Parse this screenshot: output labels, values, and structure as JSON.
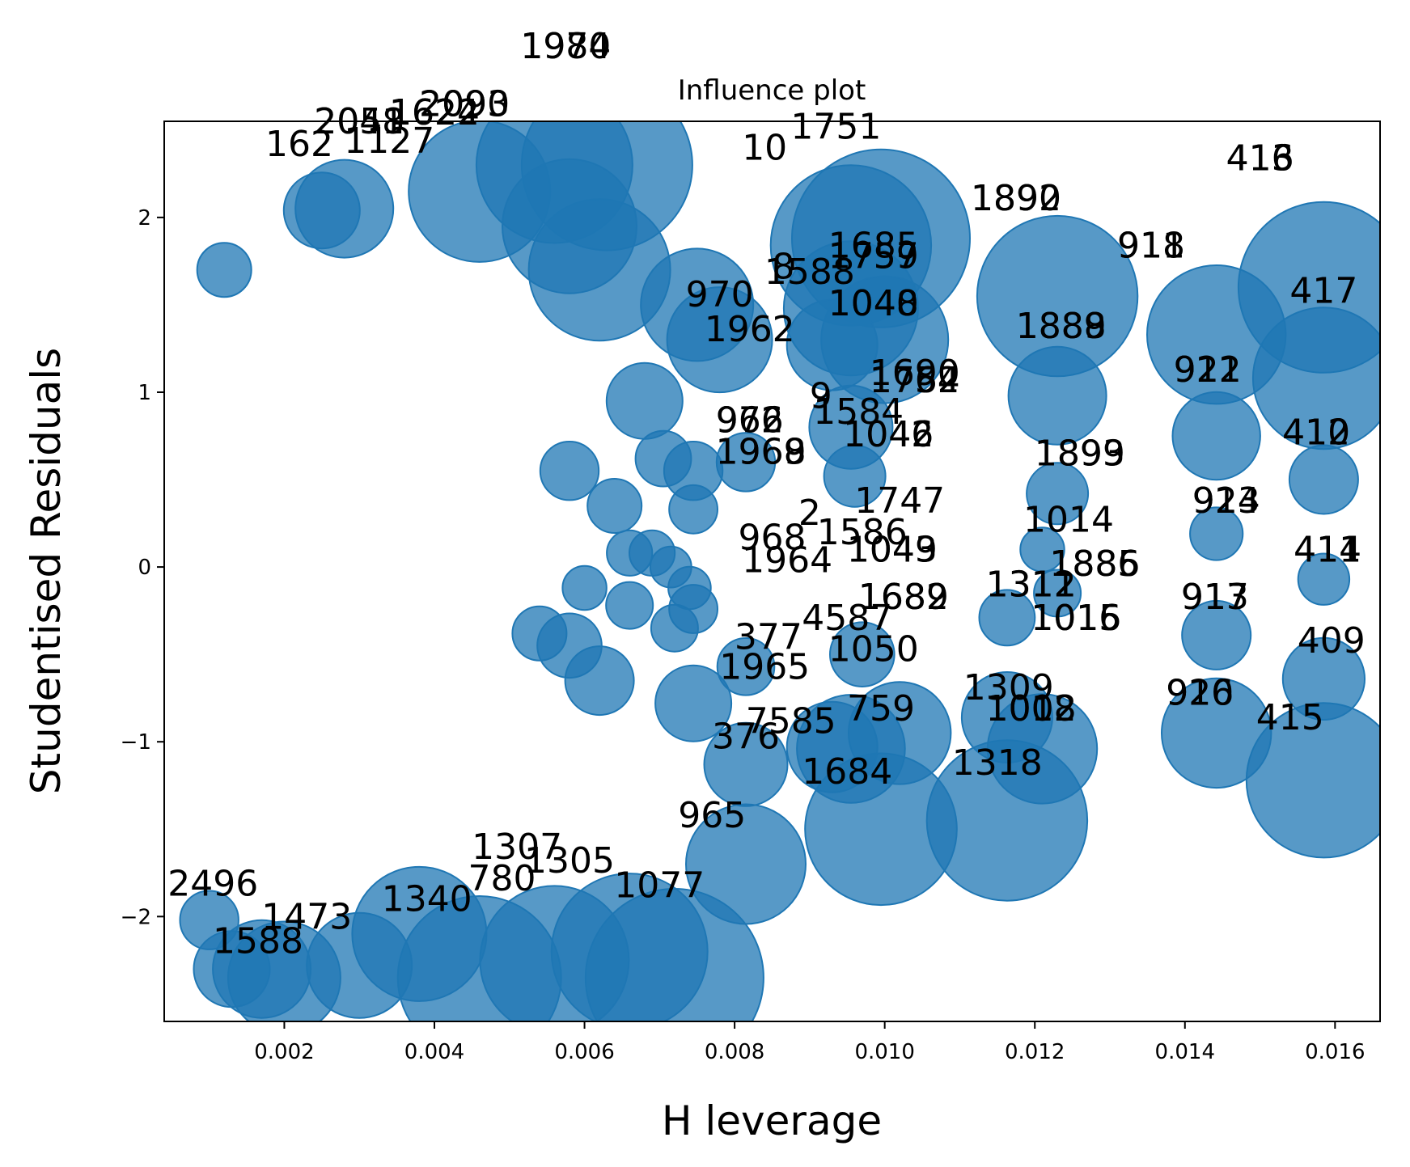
{
  "chart_data": {
    "type": "scatter",
    "title": "Influence plot",
    "xlabel": "H leverage",
    "ylabel": "Studentised Residuals",
    "xlim": [
      0.0004,
      0.0166
    ],
    "ylim": [
      -2.6,
      2.55
    ],
    "xticks": [
      0.002,
      0.004,
      0.006,
      0.008,
      0.01,
      0.012,
      0.014,
      0.016
    ],
    "xtick_labels": [
      "0.002",
      "0.004",
      "0.006",
      "0.008",
      "0.010",
      "0.012",
      "0.014",
      "0.016"
    ],
    "yticks": [
      -2,
      -1,
      0,
      1,
      2
    ],
    "ytick_labels": [
      "−2",
      "−1",
      "0",
      "1",
      "2"
    ],
    "grid": false,
    "marker_color": "#1f77b4",
    "note": "bubble size proportional to Cook's distance",
    "points": [
      {
        "h": 0.01585,
        "r": 1.6,
        "size": 0.95
      },
      {
        "h": 0.01585,
        "r": 1.08,
        "size": 0.75
      },
      {
        "h": 0.01585,
        "r": 0.5,
        "size": 0.25
      },
      {
        "h": 0.01585,
        "r": -0.07,
        "size": 0.13
      },
      {
        "h": 0.01585,
        "r": -0.64,
        "size": 0.34
      },
      {
        "h": 0.01585,
        "r": -1.22,
        "size": 0.84
      },
      {
        "h": 0.01442,
        "r": 1.33,
        "size": 0.73
      },
      {
        "h": 0.01442,
        "r": 0.75,
        "size": 0.38
      },
      {
        "h": 0.01442,
        "r": 0.19,
        "size": 0.14
      },
      {
        "h": 0.01442,
        "r": -0.39,
        "size": 0.25
      },
      {
        "h": 0.01442,
        "r": -0.95,
        "size": 0.53
      },
      {
        "h": 0.0123,
        "r": 1.55,
        "size": 0.88
      },
      {
        "h": 0.0123,
        "r": 0.98,
        "size": 0.45
      },
      {
        "h": 0.0123,
        "r": 0.42,
        "size": 0.2
      },
      {
        "h": 0.0121,
        "r": 0.1,
        "size": 0.08
      },
      {
        "h": 0.0123,
        "r": -0.15,
        "size": 0.1
      },
      {
        "h": 0.0121,
        "r": -1.04,
        "size": 0.53
      },
      {
        "h": 0.01163,
        "r": -1.45,
        "size": 0.88
      },
      {
        "h": 0.01163,
        "r": -0.86,
        "size": 0.4
      },
      {
        "h": 0.01163,
        "r": -0.29,
        "size": 0.16
      },
      {
        "h": 0.00995,
        "r": 1.88,
        "size": 1.0
      },
      {
        "h": 0.00955,
        "r": 1.84,
        "size": 0.88
      },
      {
        "h": 0.00955,
        "r": 1.48,
        "size": 0.7
      },
      {
        "h": 0.01,
        "r": 1.3,
        "size": 0.65
      },
      {
        "h": 0.0093,
        "r": 1.27,
        "size": 0.4
      },
      {
        "h": 0.00995,
        "r": -1.5,
        "size": 0.82
      },
      {
        "h": 0.00955,
        "r": -1.04,
        "size": 0.52
      },
      {
        "h": 0.0102,
        "r": -0.95,
        "size": 0.48
      },
      {
        "h": 0.0093,
        "r": -1.03,
        "size": 0.4
      },
      {
        "h": 0.00955,
        "r": 0.8,
        "size": 0.35
      },
      {
        "h": 0.0096,
        "r": 0.52,
        "size": 0.2
      },
      {
        "h": 0.0097,
        "r": -0.5,
        "size": 0.22
      },
      {
        "h": 0.00815,
        "r": -1.7,
        "size": 0.6
      },
      {
        "h": 0.00815,
        "r": -1.13,
        "size": 0.35
      },
      {
        "h": 0.00815,
        "r": -0.57,
        "size": 0.17
      },
      {
        "h": 0.00815,
        "r": 0.6,
        "size": 0.18
      },
      {
        "h": 0.0078,
        "r": 1.3,
        "size": 0.5
      },
      {
        "h": 0.0075,
        "r": 1.5,
        "size": 0.55
      },
      {
        "h": 0.00745,
        "r": 0.55,
        "size": 0.18
      },
      {
        "h": 0.00745,
        "r": 0.33,
        "size": 0.11
      },
      {
        "h": 0.00745,
        "r": -0.24,
        "size": 0.11
      },
      {
        "h": 0.0072,
        "r": -0.35,
        "size": 0.1
      },
      {
        "h": 0.00745,
        "r": -0.78,
        "size": 0.3
      },
      {
        "h": 0.0063,
        "r": 2.3,
        "size": 0.95
      },
      {
        "h": 0.0056,
        "r": 2.3,
        "size": 0.85
      },
      {
        "h": 0.0058,
        "r": 1.95,
        "size": 0.7
      },
      {
        "h": 0.0062,
        "r": 1.7,
        "size": 0.75
      },
      {
        "h": 0.0028,
        "r": 2.05,
        "size": 0.45
      },
      {
        "h": 0.0025,
        "r": 2.04,
        "size": 0.3
      },
      {
        "h": 0.0046,
        "r": 2.15,
        "size": 0.75
      },
      {
        "h": 0.0072,
        "r": -2.35,
        "size": 1.0
      },
      {
        "h": 0.0066,
        "r": -2.2,
        "size": 0.85
      },
      {
        "h": 0.0056,
        "r": -2.25,
        "size": 0.8
      },
      {
        "h": 0.0046,
        "r": -2.35,
        "size": 0.9
      },
      {
        "h": 0.0038,
        "r": -2.1,
        "size": 0.7
      },
      {
        "h": 0.003,
        "r": -2.28,
        "size": 0.5
      },
      {
        "h": 0.002,
        "r": -2.35,
        "size": 0.55
      },
      {
        "h": 0.0017,
        "r": -2.3,
        "size": 0.45
      },
      {
        "h": 0.0013,
        "r": -2.3,
        "size": 0.3
      },
      {
        "h": 0.001,
        "r": -2.02,
        "size": 0.18
      },
      {
        "h": 0.0012,
        "r": 1.7,
        "size": 0.15
      },
      {
        "h": 0.0058,
        "r": 0.55,
        "size": 0.18
      },
      {
        "h": 0.0064,
        "r": 0.35,
        "size": 0.15
      },
      {
        "h": 0.0066,
        "r": 0.08,
        "size": 0.09
      },
      {
        "h": 0.0069,
        "r": 0.08,
        "size": 0.09
      },
      {
        "h": 0.0066,
        "r": -0.22,
        "size": 0.1
      },
      {
        "h": 0.006,
        "r": -0.12,
        "size": 0.08
      },
      {
        "h": 0.0058,
        "r": -0.45,
        "size": 0.22
      },
      {
        "h": 0.0062,
        "r": -0.65,
        "size": 0.25
      },
      {
        "h": 0.0074,
        "r": -0.12,
        "size": 0.07
      },
      {
        "h": 0.00715,
        "r": 0.0,
        "size": 0.06
      },
      {
        "h": 0.00705,
        "r": 0.62,
        "size": 0.16
      },
      {
        "h": 0.0068,
        "r": 0.95,
        "size": 0.3
      },
      {
        "h": 0.0054,
        "r": -0.38,
        "size": 0.15
      }
    ],
    "annotations": [
      {
        "text": "1980",
        "h": 0.00575,
        "r": 2.98
      },
      {
        "text": "1974",
        "h": 0.00575,
        "r": 2.98
      },
      {
        "text": "2090",
        "h": 0.0044,
        "r": 2.65
      },
      {
        "text": "2093",
        "h": 0.0044,
        "r": 2.65
      },
      {
        "text": "1624",
        "h": 0.004,
        "r": 2.6
      },
      {
        "text": "1622",
        "h": 0.004,
        "r": 2.6
      },
      {
        "text": "2051",
        "h": 0.003,
        "r": 2.55
      },
      {
        "text": "2048",
        "h": 0.003,
        "r": 2.55
      },
      {
        "text": "162",
        "h": 0.0022,
        "r": 2.42
      },
      {
        "text": "1127",
        "h": 0.0034,
        "r": 2.44
      },
      {
        "text": "1751",
        "h": 0.00935,
        "r": 2.52
      },
      {
        "text": "10",
        "h": 0.0084,
        "r": 2.4
      },
      {
        "text": "416",
        "h": 0.015,
        "r": 2.34
      },
      {
        "text": "413",
        "h": 0.015,
        "r": 2.34
      },
      {
        "text": "1890",
        "h": 0.01175,
        "r": 2.11
      },
      {
        "text": "1892",
        "h": 0.01175,
        "r": 2.11
      },
      {
        "text": "918",
        "h": 0.01355,
        "r": 1.84
      },
      {
        "text": "911",
        "h": 0.01355,
        "r": 1.84
      },
      {
        "text": "417",
        "h": 0.01585,
        "r": 1.58
      },
      {
        "text": "1685",
        "h": 0.00985,
        "r": 1.84
      },
      {
        "text": "1757",
        "h": 0.00985,
        "r": 1.78
      },
      {
        "text": "1759",
        "h": 0.00985,
        "r": 1.78
      },
      {
        "text": "1588",
        "h": 0.009,
        "r": 1.69
      },
      {
        "text": "8",
        "h": 0.00865,
        "r": 1.72
      },
      {
        "text": "970",
        "h": 0.0078,
        "r": 1.56
      },
      {
        "text": "1040",
        "h": 0.00985,
        "r": 1.51
      },
      {
        "text": "1048",
        "h": 0.00985,
        "r": 1.51
      },
      {
        "text": "1962",
        "h": 0.0082,
        "r": 1.36
      },
      {
        "text": "1888",
        "h": 0.01235,
        "r": 1.38
      },
      {
        "text": "1889",
        "h": 0.01235,
        "r": 1.38
      },
      {
        "text": "921",
        "h": 0.0143,
        "r": 1.13
      },
      {
        "text": "912",
        "h": 0.0143,
        "r": 1.13
      },
      {
        "text": "1690",
        "h": 0.0104,
        "r": 1.11
      },
      {
        "text": "1754",
        "h": 0.0104,
        "r": 1.07
      },
      {
        "text": "1762",
        "h": 0.0104,
        "r": 1.07
      },
      {
        "text": "9",
        "h": 0.00915,
        "r": 0.98
      },
      {
        "text": "1584",
        "h": 0.00965,
        "r": 0.89
      },
      {
        "text": "976",
        "h": 0.0082,
        "r": 0.84
      },
      {
        "text": "962",
        "h": 0.0082,
        "r": 0.84
      },
      {
        "text": "1042",
        "h": 0.01005,
        "r": 0.76
      },
      {
        "text": "1046",
        "h": 0.01005,
        "r": 0.76
      },
      {
        "text": "410",
        "h": 0.01575,
        "r": 0.77
      },
      {
        "text": "412",
        "h": 0.01575,
        "r": 0.77
      },
      {
        "text": "1969",
        "h": 0.00835,
        "r": 0.66
      },
      {
        "text": "1968",
        "h": 0.00835,
        "r": 0.66
      },
      {
        "text": "1899",
        "h": 0.0126,
        "r": 0.65
      },
      {
        "text": "1893",
        "h": 0.0126,
        "r": 0.65
      },
      {
        "text": "914",
        "h": 0.01455,
        "r": 0.38
      },
      {
        "text": "923",
        "h": 0.01455,
        "r": 0.38
      },
      {
        "text": "1747",
        "h": 0.0102,
        "r": 0.38
      },
      {
        "text": "1014",
        "h": 0.01245,
        "r": 0.27
      },
      {
        "text": "1586",
        "h": 0.0097,
        "r": 0.2
      },
      {
        "text": "2",
        "h": 0.009,
        "r": 0.31
      },
      {
        "text": "968",
        "h": 0.0085,
        "r": 0.17
      },
      {
        "text": "1964",
        "h": 0.0087,
        "r": 0.04
      },
      {
        "text": "1049",
        "h": 0.0101,
        "r": 0.1
      },
      {
        "text": "1043",
        "h": 0.0101,
        "r": 0.1
      },
      {
        "text": "414",
        "h": 0.0159,
        "r": 0.1
      },
      {
        "text": "411",
        "h": 0.0159,
        "r": 0.1
      },
      {
        "text": "1886",
        "h": 0.0128,
        "r": 0.02
      },
      {
        "text": "1885",
        "h": 0.0128,
        "r": 0.02
      },
      {
        "text": "1311",
        "h": 0.01195,
        "r": -0.1
      },
      {
        "text": "1312",
        "h": 0.01195,
        "r": -0.1
      },
      {
        "text": "917",
        "h": 0.0144,
        "r": -0.17
      },
      {
        "text": "913",
        "h": 0.0144,
        "r": -0.17
      },
      {
        "text": "1689",
        "h": 0.01025,
        "r": -0.17
      },
      {
        "text": "1682",
        "h": 0.01025,
        "r": -0.17
      },
      {
        "text": "1016",
        "h": 0.01255,
        "r": -0.29
      },
      {
        "text": "1015",
        "h": 0.01255,
        "r": -0.29
      },
      {
        "text": "4587",
        "h": 0.0095,
        "r": -0.29
      },
      {
        "text": "409",
        "h": 0.01595,
        "r": -0.42
      },
      {
        "text": "377",
        "h": 0.00845,
        "r": -0.4
      },
      {
        "text": "1050",
        "h": 0.00985,
        "r": -0.47
      },
      {
        "text": "1965",
        "h": 0.0084,
        "r": -0.57
      },
      {
        "text": "1309",
        "h": 0.01165,
        "r": -0.69
      },
      {
        "text": "920",
        "h": 0.0142,
        "r": -0.72
      },
      {
        "text": "916",
        "h": 0.0142,
        "r": -0.72
      },
      {
        "text": "1008",
        "h": 0.01195,
        "r": -0.81
      },
      {
        "text": "1012",
        "h": 0.01195,
        "r": -0.81
      },
      {
        "text": "759",
        "h": 0.00995,
        "r": -0.81
      },
      {
        "text": "7585",
        "h": 0.00875,
        "r": -0.88
      },
      {
        "text": "415",
        "h": 0.0154,
        "r": -0.86
      },
      {
        "text": "376",
        "h": 0.00815,
        "r": -0.97
      },
      {
        "text": "1318",
        "h": 0.0115,
        "r": -1.12
      },
      {
        "text": "1684",
        "h": 0.0095,
        "r": -1.17
      },
      {
        "text": "965",
        "h": 0.0077,
        "r": -1.42
      },
      {
        "text": "1307",
        "h": 0.0051,
        "r": -1.6
      },
      {
        "text": "1305",
        "h": 0.0058,
        "r": -1.68
      },
      {
        "text": "1077",
        "h": 0.007,
        "r": -1.82
      },
      {
        "text": "780",
        "h": 0.0049,
        "r": -1.78
      },
      {
        "text": "1340",
        "h": 0.0039,
        "r": -1.9
      },
      {
        "text": "2496",
        "h": 0.00105,
        "r": -1.81
      },
      {
        "text": "1473",
        "h": 0.0023,
        "r": -2.0
      },
      {
        "text": "1588",
        "h": 0.00165,
        "r": -2.14
      }
    ]
  }
}
